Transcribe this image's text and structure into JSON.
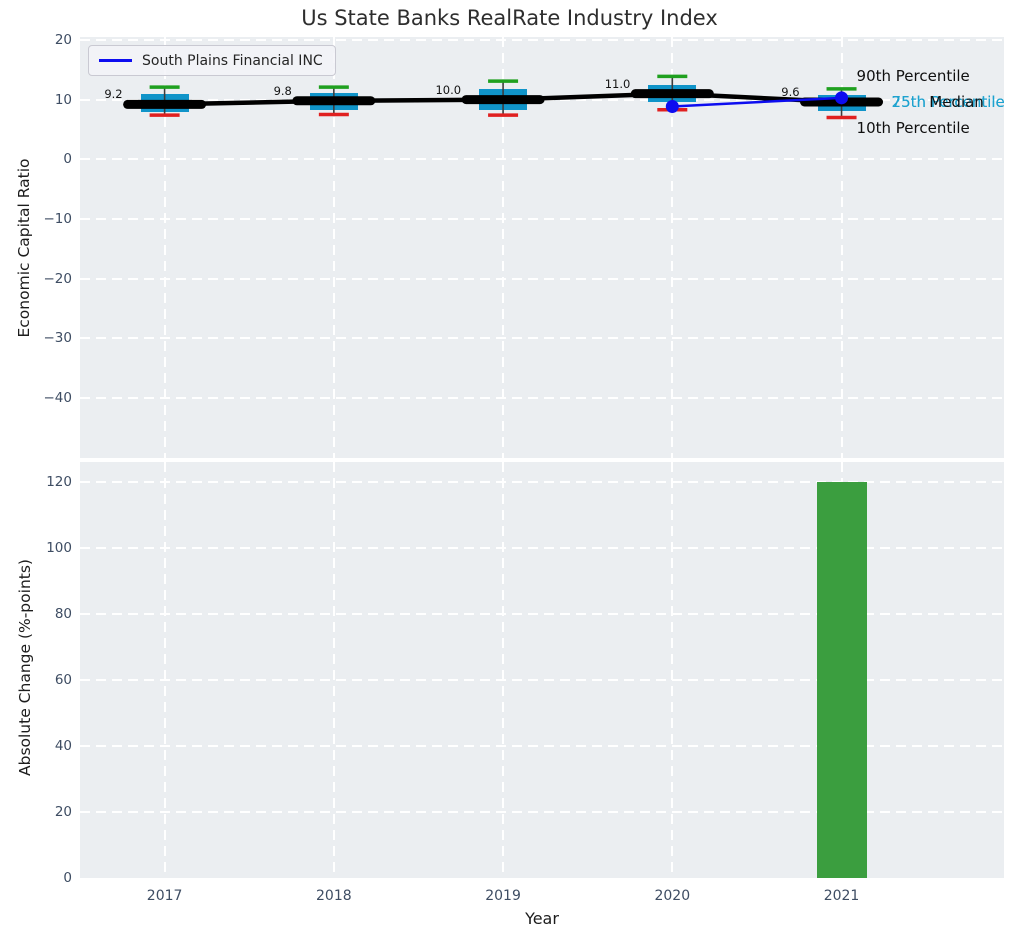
{
  "figure": {
    "title": "Us State Banks RealRate Industry Index",
    "background": "#ffffff",
    "axes_background": "#ebeef1",
    "grid_color": "#ffffff"
  },
  "legend": {
    "label": "South Plains Financial INC",
    "line_color": "#0d0df0",
    "position": "upper left"
  },
  "style": {
    "box_fill": "#1094c9",
    "cap_90_color": "#1fa01f",
    "cap_10_color": "#e02020",
    "whisker_color": "#3c3c3c",
    "median_color": "#000000",
    "company_color": "#0d0df0",
    "bar_color": "#3b9e3f",
    "tick_color": "#3e4d63",
    "cyan_label_color": "#1da2cf"
  },
  "chart_data": [
    {
      "type": "boxplot",
      "title": "Us State Banks RealRate Industry Index",
      "ylabel": "Economic Capital Ratio",
      "xlabel": "",
      "grid": true,
      "legend_position": "upper left",
      "x": [
        2017,
        2018,
        2019,
        2020,
        2021
      ],
      "xlim": [
        2016.5,
        2021.96
      ],
      "ylim": [
        -50.1,
        20.5
      ],
      "yticks": [
        20,
        10,
        0,
        -10,
        -20,
        -30,
        -40
      ],
      "boxes": [
        {
          "year": 2017,
          "p10": 7.4,
          "p25": 8.0,
          "median": 9.2,
          "p75": 10.9,
          "p90": 12.1,
          "median_label": "9.2"
        },
        {
          "year": 2018,
          "p10": 7.5,
          "p25": 8.2,
          "median": 9.8,
          "p75": 11.1,
          "p90": 12.1,
          "median_label": "9.8"
        },
        {
          "year": 2019,
          "p10": 7.4,
          "p25": 8.3,
          "median": 10.0,
          "p75": 11.8,
          "p90": 13.1,
          "median_label": "10.0"
        },
        {
          "year": 2020,
          "p10": 8.3,
          "p25": 9.6,
          "median": 11.0,
          "p75": 12.4,
          "p90": 13.9,
          "median_label": "11.0"
        },
        {
          "year": 2021,
          "p10": 7.0,
          "p25": 8.1,
          "median": 9.6,
          "p75": 10.8,
          "p90": 11.8,
          "median_label": "9.6"
        }
      ],
      "series": [
        {
          "name": "South Plains Financial INC",
          "x": [
            2020,
            2021
          ],
          "y": [
            8.85,
            10.3
          ],
          "marker": "circle"
        }
      ],
      "percentile_labels": {
        "p90": "90th Percentile",
        "median": "Median",
        "p75": "75th Percentile",
        "p25": "25th Percentile",
        "p10": "10th Percentile"
      }
    },
    {
      "type": "bar",
      "ylabel": "Absolute Change (%-points)",
      "xlabel": "Year",
      "grid": true,
      "categories": [
        "2017",
        "2018",
        "2019",
        "2020",
        "2021"
      ],
      "values": [
        0,
        0,
        0,
        0,
        120
      ],
      "ylim": [
        0,
        126
      ],
      "yticks": [
        0,
        20,
        40,
        60,
        80,
        100,
        120
      ]
    }
  ]
}
